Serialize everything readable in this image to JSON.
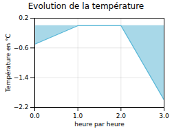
{
  "chart_data": {
    "type": "area",
    "title": "Evolution de la température",
    "xlabel": "heure par heure",
    "ylabel": "Température en °C",
    "x": [
      0,
      1,
      2,
      3
    ],
    "series": [
      {
        "type": "area",
        "color": "#a8d8e8",
        "values": [
          -0.5,
          0.0,
          0.0,
          -2.0
        ]
      },
      {
        "type": "line",
        "color": "#5ab8d8",
        "values": [
          -0.5,
          0.0,
          0.0,
          -2.0
        ]
      }
    ],
    "xlim": [
      0,
      3
    ],
    "ylim": [
      -2.2,
      0.2
    ],
    "xticks": [
      0,
      1,
      2,
      3
    ],
    "yticks": [
      0.2,
      -0.6,
      -1.4,
      -2.2
    ],
    "grid": true
  }
}
